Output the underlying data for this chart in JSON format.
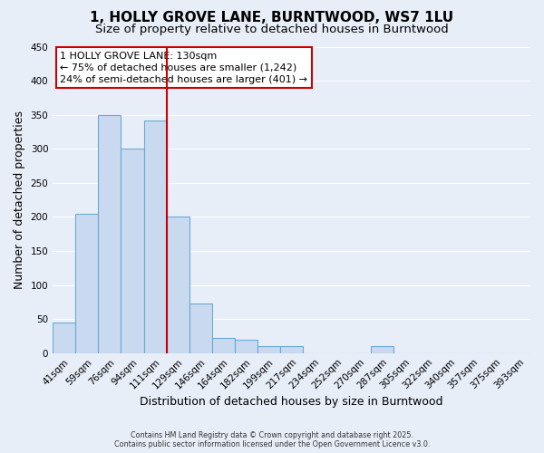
{
  "title": "1, HOLLY GROVE LANE, BURNTWOOD, WS7 1LU",
  "subtitle": "Size of property relative to detached houses in Burntwood",
  "xlabel": "Distribution of detached houses by size in Burntwood",
  "ylabel": "Number of detached properties",
  "bin_labels": [
    "41sqm",
    "59sqm",
    "76sqm",
    "94sqm",
    "111sqm",
    "129sqm",
    "146sqm",
    "164sqm",
    "182sqm",
    "199sqm",
    "217sqm",
    "234sqm",
    "252sqm",
    "270sqm",
    "287sqm",
    "305sqm",
    "322sqm",
    "340sqm",
    "357sqm",
    "375sqm",
    "393sqm"
  ],
  "bar_heights": [
    45,
    205,
    350,
    300,
    342,
    200,
    73,
    22,
    20,
    10,
    10,
    0,
    0,
    0,
    10,
    0,
    0,
    0,
    0,
    0,
    0
  ],
  "bar_color": "#c9d9f0",
  "bar_edge_color": "#6aaad4",
  "vline_x": 5,
  "vline_color": "#cc0000",
  "ylim": [
    0,
    450
  ],
  "yticks": [
    0,
    50,
    100,
    150,
    200,
    250,
    300,
    350,
    400,
    450
  ],
  "annotation_title": "1 HOLLY GROVE LANE: 130sqm",
  "annotation_line1": "← 75% of detached houses are smaller (1,242)",
  "annotation_line2": "24% of semi-detached houses are larger (401) →",
  "annotation_box_color": "#ffffff",
  "annotation_border_color": "#cc0000",
  "footer_line1": "Contains HM Land Registry data © Crown copyright and database right 2025.",
  "footer_line2": "Contains public sector information licensed under the Open Government Licence v3.0.",
  "background_color": "#e8eef8",
  "grid_color": "#ffffff",
  "title_fontsize": 11,
  "subtitle_fontsize": 9.5,
  "axis_label_fontsize": 9,
  "tick_fontsize": 7.5
}
